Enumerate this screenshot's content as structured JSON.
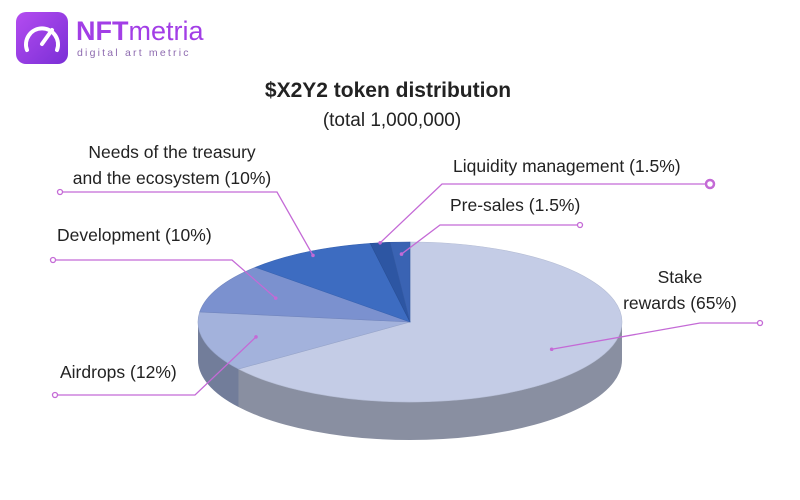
{
  "logo": {
    "name_bold": "NFT",
    "name_rest": "metria",
    "tagline": "digital art metric"
  },
  "chart_data": {
    "type": "pie",
    "title": "$X2Y2 token distribution",
    "subtitle": "(total 1,000,000)",
    "values": [
      65,
      12,
      10,
      10,
      1.5,
      1.5
    ],
    "value_labels": [
      "Stake\nrewards (65%)",
      "Airdrops (12%)",
      "Development (10%)",
      "Needs of the treasury\nand the ecosystem (10%)",
      "Liquidity management (1.5%)",
      "Pre-sales (1.5%)"
    ],
    "colors": [
      "#c4cce6",
      "#a3b2dc",
      "#7b91cf",
      "#3d6cc1",
      "#2d56a3",
      "#3a63b3"
    ]
  }
}
